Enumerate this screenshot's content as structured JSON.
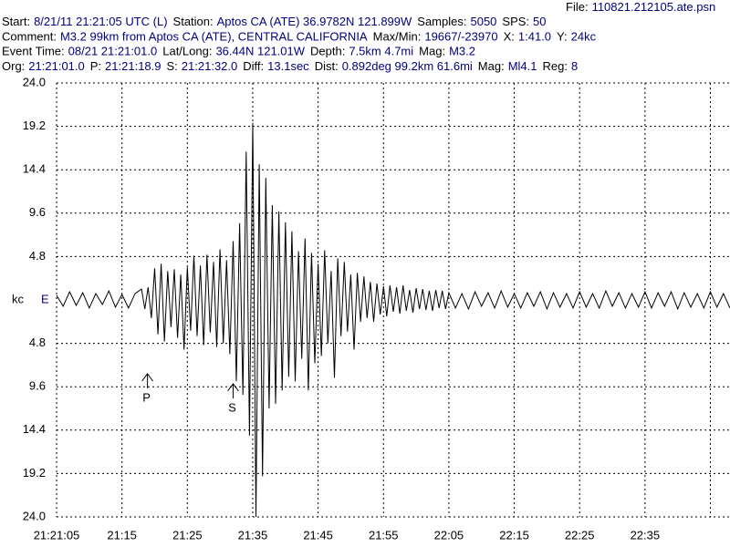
{
  "header": {
    "file_label": "File:",
    "file": "110821.212105.ate.psn",
    "lines": [
      [
        {
          "label": "Start:",
          "value": "8/21/11 21:21:05 UTC (L)"
        },
        {
          "label": "Station:",
          "value": "Aptos CA (ATE) 36.9782N 121.899W"
        },
        {
          "label": "Samples:",
          "value": "5050"
        },
        {
          "label": "SPS:",
          "value": "50"
        }
      ],
      [
        {
          "label": "Comment:",
          "value": "M3.2 99km from Aptos CA (ATE), CENTRAL CALIFORNIA"
        },
        {
          "label": "Max/Min:",
          "value": "19667/-23970"
        },
        {
          "label": "X:",
          "value": "1:41.0"
        },
        {
          "label": "Y:",
          "value": "24kc"
        }
      ],
      [
        {
          "label": "Event Time:",
          "value": "08/21 21:21:01.0"
        },
        {
          "label": "Lat/Long:",
          "value": "36.44N 121.01W"
        },
        {
          "label": "Depth:",
          "value": "7.5km 4.7mi"
        },
        {
          "label": "Mag:",
          "value": "M3.2"
        }
      ],
      [
        {
          "label": "Org:",
          "value": "21:21:01.0"
        },
        {
          "label": "P:",
          "value": "21:21:18.9"
        },
        {
          "label": "S:",
          "value": "21:21:32.0"
        },
        {
          "label": "Diff:",
          "value": "13.1sec"
        },
        {
          "label": "Dist:",
          "value": "0.892deg 99.2km 61.6mi"
        },
        {
          "label": "Mag:",
          "value": "Ml4.1"
        },
        {
          "label": "Reg:",
          "value": "8"
        }
      ]
    ]
  },
  "chart_data": {
    "type": "line",
    "y_label": "kc",
    "grid": true,
    "xlim": [
      0,
      103
    ],
    "ylim": [
      -24,
      24
    ],
    "xticks": [
      {
        "value": 0,
        "label": "21:21:05"
      },
      {
        "value": 10,
        "label": "21:15"
      },
      {
        "value": 20,
        "label": "21:25"
      },
      {
        "value": 30,
        "label": "21:35"
      },
      {
        "value": 40,
        "label": "21:45"
      },
      {
        "value": 50,
        "label": "21:55"
      },
      {
        "value": 60,
        "label": "22:05"
      },
      {
        "value": 70,
        "label": "22:15"
      },
      {
        "value": 80,
        "label": "22:25"
      },
      {
        "value": 90,
        "label": "22:35"
      },
      {
        "value": 100,
        "label": ""
      }
    ],
    "yticks": [
      {
        "value": 24,
        "label": "24.0"
      },
      {
        "value": 19.2,
        "label": "19.2"
      },
      {
        "value": 14.4,
        "label": "14.4"
      },
      {
        "value": 9.6,
        "label": "9.6"
      },
      {
        "value": 4.8,
        "label": "4.8"
      },
      {
        "value": -4.8,
        "label": "4.8"
      },
      {
        "value": -9.6,
        "label": "9.6"
      },
      {
        "value": -14.4,
        "label": "14.4"
      },
      {
        "value": -19.2,
        "label": "19.2"
      },
      {
        "value": -24,
        "label": "24.0"
      }
    ],
    "annotations": [
      {
        "text": "P",
        "x": 13.9
      },
      {
        "text": "S",
        "x": 27.0
      }
    ],
    "series": [
      {
        "name": "E",
        "color": "#000000",
        "label_color": "#000080",
        "x": [
          0,
          1,
          2,
          3,
          4,
          5,
          6,
          7,
          8,
          9,
          10,
          11,
          12,
          13,
          13.5,
          14,
          14.5,
          15,
          15.5,
          16,
          16.5,
          17,
          17.5,
          18,
          18.5,
          19,
          19.5,
          20,
          20.5,
          21,
          21.5,
          22,
          22.5,
          23,
          23.5,
          24,
          24.5,
          25,
          25.5,
          26,
          26.5,
          27,
          27.5,
          28,
          28.5,
          29,
          29.5,
          30,
          30.5,
          31,
          31.5,
          32,
          32.5,
          33,
          33.5,
          34,
          34.5,
          35,
          35.5,
          36,
          36.5,
          37,
          37.5,
          38,
          38.5,
          39,
          39.5,
          40,
          40.5,
          41,
          41.5,
          42,
          42.5,
          43,
          43.5,
          44,
          44.5,
          45,
          45.5,
          46,
          46.5,
          47,
          47.5,
          48,
          48.5,
          49,
          49.5,
          50,
          50.5,
          51,
          51.5,
          52,
          52.5,
          53,
          53.5,
          54,
          54.5,
          55,
          55.5,
          56,
          56.5,
          57,
          57.5,
          58,
          58.5,
          59,
          59.5,
          60,
          61,
          62,
          63,
          64,
          65,
          66,
          67,
          68,
          69,
          70,
          71,
          72,
          73,
          74,
          75,
          76,
          77,
          78,
          79,
          80,
          81,
          82,
          83,
          84,
          85,
          86,
          87,
          88,
          89,
          90,
          91,
          92,
          93,
          94,
          95,
          96,
          97,
          98,
          99,
          100,
          101,
          102,
          103
        ],
        "values": [
          0.5,
          -0.7,
          0.9,
          -0.6,
          0.8,
          -0.9,
          0.7,
          -0.5,
          1.0,
          -0.8,
          0.6,
          -0.9,
          0.7,
          1.2,
          -1.0,
          1.4,
          -2.0,
          3.5,
          -3.8,
          4.0,
          -4.6,
          3.2,
          -3.0,
          3.4,
          -4.2,
          2.8,
          -5.5,
          3.6,
          -3.4,
          4.9,
          -4.0,
          3.8,
          -5.0,
          5.0,
          -3.6,
          4.2,
          -5.2,
          5.6,
          -4.8,
          4.4,
          -6.0,
          6.5,
          -9.0,
          8.5,
          -10.5,
          16.4,
          -15.0,
          19.6,
          -24.0,
          15.0,
          -19.5,
          13.5,
          -12.0,
          10.5,
          -11.5,
          9.8,
          -10.0,
          8.6,
          -8.5,
          7.6,
          -9.0,
          5.4,
          -6.5,
          6.8,
          -10.0,
          5.2,
          -7.0,
          4.0,
          -6.2,
          5.5,
          -4.8,
          3.2,
          -8.6,
          4.6,
          -4.0,
          4.2,
          -3.5,
          2.8,
          -5.5,
          3.0,
          -2.4,
          2.6,
          -2.0,
          2.0,
          -2.4,
          1.8,
          -1.6,
          1.5,
          -1.8,
          1.6,
          -1.3,
          1.4,
          -1.5,
          1.6,
          -1.2,
          1.1,
          -1.4,
          1.3,
          -1.0,
          1.2,
          -1.1,
          1.0,
          -1.2,
          1.1,
          -0.9,
          1.0,
          -1.0,
          0.8,
          -0.9,
          0.7,
          -1.0,
          0.9,
          -0.7,
          0.8,
          -0.9,
          1.0,
          -0.8,
          0.7,
          -0.9,
          0.8,
          -0.7,
          0.9,
          -1.0,
          0.8,
          -0.8,
          0.7,
          -0.9,
          0.9,
          -0.8,
          0.7,
          -0.9,
          1.0,
          -0.7,
          0.8,
          -0.9,
          0.7,
          -0.8,
          0.9,
          -0.9,
          0.8,
          -0.7,
          0.9,
          -1.0,
          0.8,
          -0.8,
          0.7,
          -0.9,
          0.9,
          -0.8,
          0.7,
          -0.9
        ]
      }
    ]
  }
}
